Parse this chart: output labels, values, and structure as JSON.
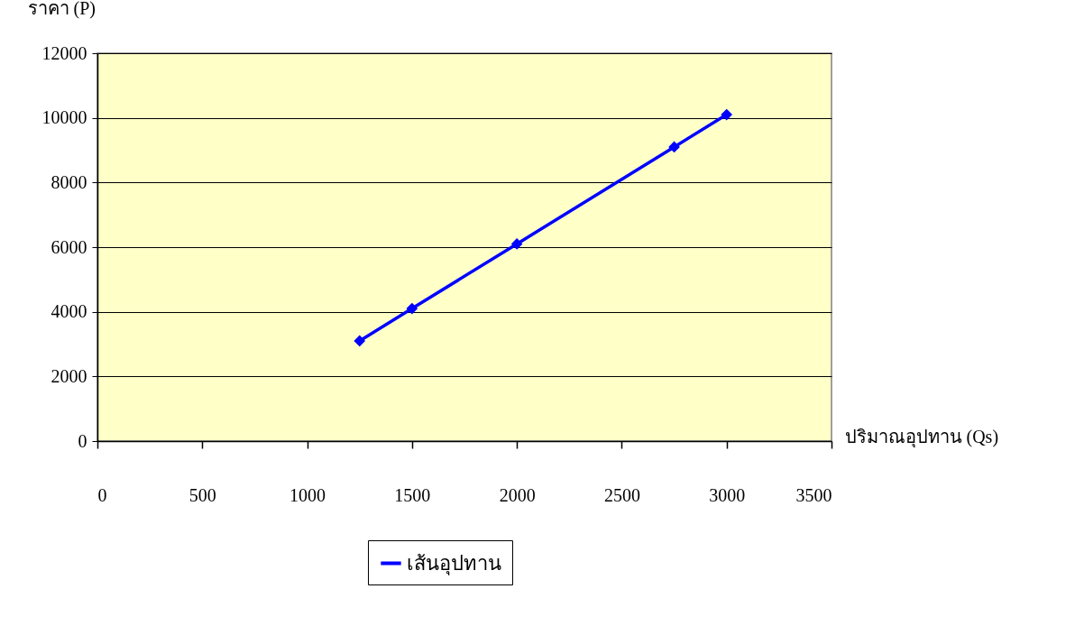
{
  "chart_data": {
    "type": "line",
    "xlabel": "ปริมาณอุปทาน (Qs)",
    "ylabel": "ราคา (P)",
    "x": [
      1250,
      1500,
      2000,
      2750,
      3000
    ],
    "series": [
      {
        "name": "เส้นอุปทาน",
        "color": "#0000ff",
        "values": [
          3100,
          4100,
          6100,
          9100,
          10100
        ]
      }
    ],
    "xlim": [
      0,
      3500
    ],
    "xticks": [
      0,
      500,
      1000,
      1500,
      2000,
      2500,
      3000,
      3500
    ],
    "ylim": [
      0,
      12000
    ],
    "yticks": [
      0,
      2000,
      4000,
      6000,
      8000,
      10000,
      12000
    ],
    "grid": "y",
    "legend": "bottom",
    "marker": "diamond",
    "line_style": "solid"
  }
}
